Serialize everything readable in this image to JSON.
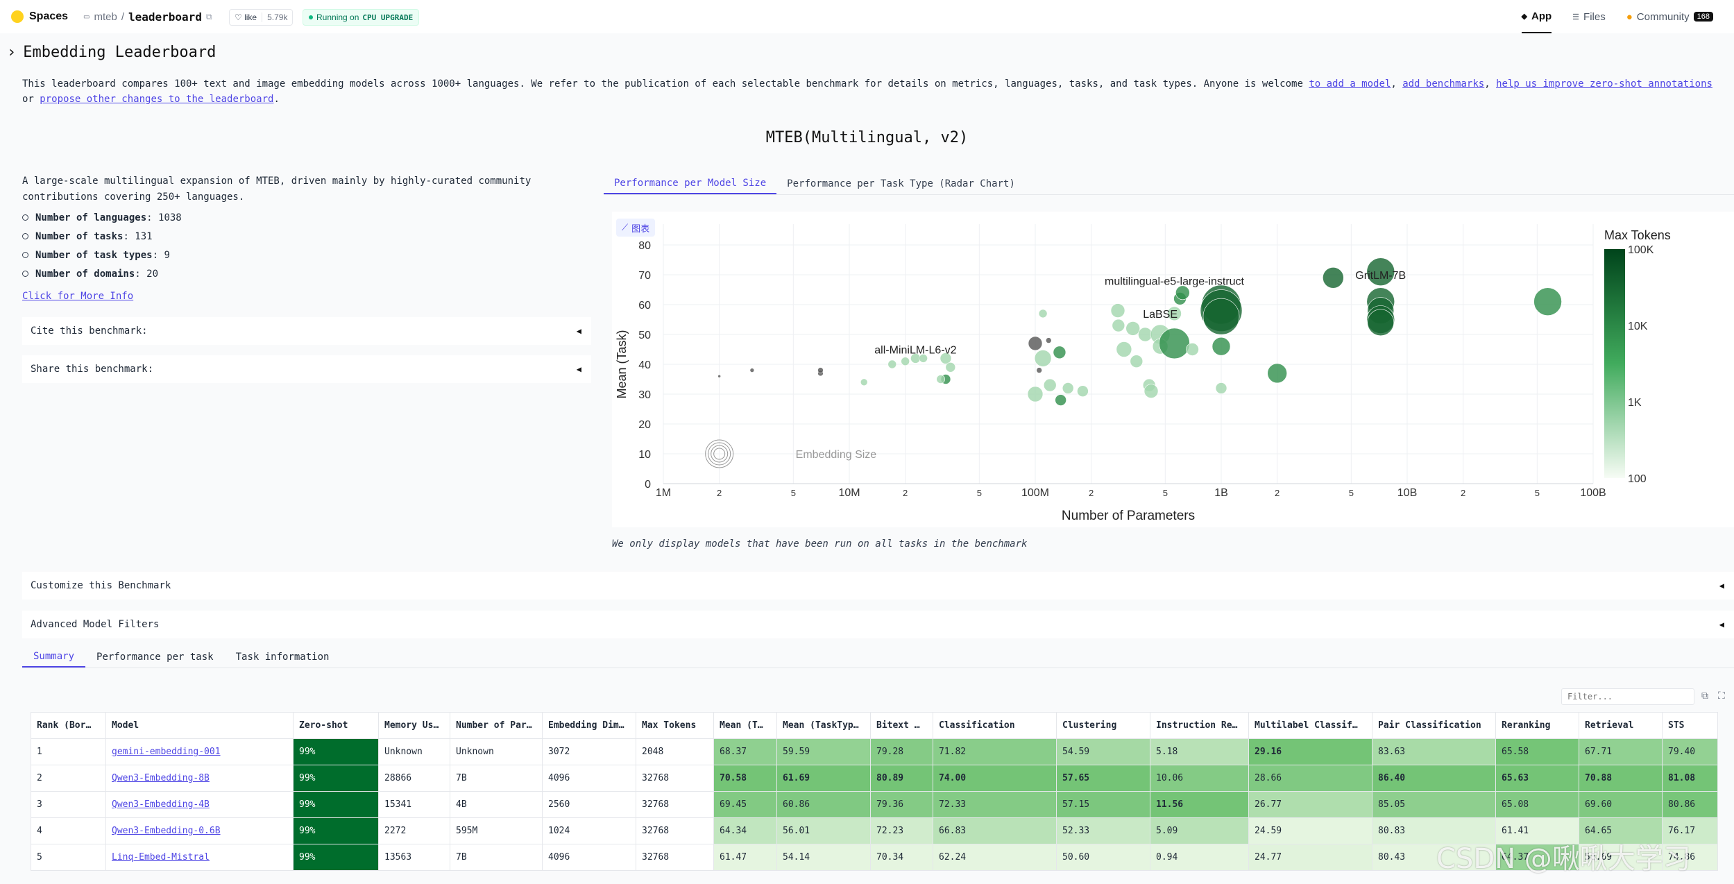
{
  "topbar": {
    "spaces_label": "Spaces",
    "org": "mteb",
    "repo": "leaderboard",
    "like_label": "like",
    "like_count": "5.79k",
    "status": "Running on",
    "hardware": "CPU UPGRADE",
    "nav": [
      {
        "label": "App"
      },
      {
        "label": "Files"
      },
      {
        "label": "Community",
        "badge": "168"
      }
    ]
  },
  "page": {
    "title": "Embedding Leaderboard",
    "intro_text": "This leaderboard compares 100+ text and image embedding models across 1000+ languages. We refer to the publication of each selectable benchmark for details on metrics, languages, tasks, and task types. Anyone is welcome ",
    "links": [
      "to add a model",
      "add benchmarks",
      "help us improve zero-shot annotations",
      "propose other changes to the leaderboard"
    ],
    "sep1": ", ",
    "sep2": ", ",
    "sep3": " or ",
    "end": "."
  },
  "benchmark": {
    "name": "MTEB(Multilingual, v2)",
    "description": "A large-scale multilingual expansion of MTEB, driven mainly by highly-curated community contributions covering 250+ languages.",
    "stats": [
      {
        "label": "Number of languages",
        "value": "1038"
      },
      {
        "label": "Number of tasks",
        "value": "131"
      },
      {
        "label": "Number of task types",
        "value": "9"
      },
      {
        "label": "Number of domains",
        "value": "20"
      }
    ],
    "more_info": "Click for More Info",
    "cite": "Cite this benchmark:",
    "share": "Share this benchmark:",
    "customize": "Customize this Benchmark",
    "filters": "Advanced Model Filters"
  },
  "chart_tabs": [
    "Performance per Model Size",
    "Performance per Task Type (Radar Chart)"
  ],
  "chart_badge": "图表",
  "chart_note": "We only display models that have been run on all tasks in the benchmark",
  "chart_data": {
    "type": "scatter",
    "xlabel": "Number of Parameters",
    "ylabel": "Mean (Task)",
    "x_scale": "log",
    "xlim": [
      1000000,
      100000000000
    ],
    "ylim": [
      0,
      80
    ],
    "x_ticks": [
      {
        "v": 1000000,
        "label": "1M"
      },
      {
        "v": 2000000,
        "label": "2"
      },
      {
        "v": 5000000,
        "label": "5"
      },
      {
        "v": 10000000,
        "label": "10M"
      },
      {
        "v": 20000000,
        "label": "2"
      },
      {
        "v": 50000000,
        "label": "5"
      },
      {
        "v": 100000000,
        "label": "100M"
      },
      {
        "v": 200000000,
        "label": "2"
      },
      {
        "v": 500000000,
        "label": "5"
      },
      {
        "v": 1000000000,
        "label": "1B"
      },
      {
        "v": 2000000000,
        "label": "2"
      },
      {
        "v": 5000000000,
        "label": "5"
      },
      {
        "v": 10000000000,
        "label": "10B"
      },
      {
        "v": 20000000000,
        "label": "2"
      },
      {
        "v": 50000000000,
        "label": "5"
      },
      {
        "v": 100000000000,
        "label": "100B"
      }
    ],
    "y_ticks": [
      0,
      10,
      20,
      30,
      40,
      50,
      60,
      70,
      80
    ],
    "colorbar": {
      "title": "Max Tokens",
      "ticks": [
        "100K",
        "10K",
        "1K",
        "100"
      ],
      "scale": "log",
      "range": [
        100,
        100000
      ],
      "colors": [
        "#00441b",
        "#f7fcf5"
      ]
    },
    "size_legend": "Embedding Size",
    "annotations": [
      {
        "text": "multilingual-e5-large-instruct",
        "x": 560000000,
        "y": 68
      },
      {
        "text": "GritLM-7B",
        "x": 7200000000,
        "y": 70
      },
      {
        "text": "LaBSE",
        "x": 470000000,
        "y": 57
      },
      {
        "text": "all-MiniLM-L6-v2",
        "x": 22700000,
        "y": 45
      }
    ],
    "points": [
      {
        "x": 2000000,
        "y": 36,
        "tok": 100,
        "s": 2,
        "gray": true
      },
      {
        "x": 3000000,
        "y": 38,
        "tok": 100,
        "s": 3,
        "gray": true
      },
      {
        "x": 7000000,
        "y": 37,
        "tok": 100,
        "s": 4,
        "gray": true
      },
      {
        "x": 7000000,
        "y": 38,
        "tok": 100,
        "s": 4,
        "gray": true
      },
      {
        "x": 12000000,
        "y": 34,
        "tok": 512,
        "s": 5
      },
      {
        "x": 17000000,
        "y": 40,
        "tok": 512,
        "s": 6
      },
      {
        "x": 20000000,
        "y": 41,
        "tok": 512,
        "s": 6
      },
      {
        "x": 22700000,
        "y": 42,
        "tok": 512,
        "s": 7
      },
      {
        "x": 25000000,
        "y": 42,
        "tok": 512,
        "s": 6
      },
      {
        "x": 33000000,
        "y": 42,
        "tok": 512,
        "s": 8
      },
      {
        "x": 33000000,
        "y": 35,
        "tok": 8192,
        "s": 7
      },
      {
        "x": 35000000,
        "y": 39,
        "tok": 512,
        "s": 7
      },
      {
        "x": 31000000,
        "y": 35,
        "tok": 512,
        "s": 6
      },
      {
        "x": 100000000,
        "y": 47,
        "tok": 100,
        "s": 10,
        "gray": true
      },
      {
        "x": 110000000,
        "y": 42,
        "tok": 512,
        "s": 12
      },
      {
        "x": 100000000,
        "y": 30,
        "tok": 512,
        "s": 11
      },
      {
        "x": 110000000,
        "y": 57,
        "tok": 512,
        "s": 6
      },
      {
        "x": 118000000,
        "y": 48,
        "tok": 100,
        "s": 4,
        "gray": true
      },
      {
        "x": 120000000,
        "y": 33,
        "tok": 512,
        "s": 9
      },
      {
        "x": 135000000,
        "y": 44,
        "tok": 8192,
        "s": 9
      },
      {
        "x": 137000000,
        "y": 28,
        "tok": 8192,
        "s": 8
      },
      {
        "x": 150000000,
        "y": 32,
        "tok": 512,
        "s": 8
      },
      {
        "x": 105000000,
        "y": 38,
        "tok": 100,
        "s": 4,
        "gray": true
      },
      {
        "x": 180000000,
        "y": 31,
        "tok": 512,
        "s": 8
      },
      {
        "x": 278000000,
        "y": 58,
        "tok": 512,
        "s": 10
      },
      {
        "x": 280000000,
        "y": 53,
        "tok": 512,
        "s": 9
      },
      {
        "x": 300000000,
        "y": 45,
        "tok": 512,
        "s": 11
      },
      {
        "x": 335000000,
        "y": 52,
        "tok": 512,
        "s": 10
      },
      {
        "x": 350000000,
        "y": 41,
        "tok": 512,
        "s": 9
      },
      {
        "x": 390000000,
        "y": 50,
        "tok": 512,
        "s": 10
      },
      {
        "x": 410000000,
        "y": 33,
        "tok": 512,
        "s": 9
      },
      {
        "x": 420000000,
        "y": 31,
        "tok": 512,
        "s": 10
      },
      {
        "x": 470000000,
        "y": 50,
        "tok": 512,
        "s": 14
      },
      {
        "x": 470000000,
        "y": 46,
        "tok": 512,
        "s": 11
      },
      {
        "x": 560000000,
        "y": 57,
        "tok": 512,
        "s": 10
      },
      {
        "x": 560000000,
        "y": 47,
        "tok": 8192,
        "s": 22
      },
      {
        "x": 600000000,
        "y": 62,
        "tok": 8192,
        "s": 9
      },
      {
        "x": 620000000,
        "y": 64,
        "tok": 8192,
        "s": 10
      },
      {
        "x": 700000000,
        "y": 45,
        "tok": 512,
        "s": 9
      },
      {
        "x": 1000000000,
        "y": 60,
        "tok": 32768,
        "s": 28
      },
      {
        "x": 1000000000,
        "y": 58,
        "tok": 32768,
        "s": 30
      },
      {
        "x": 1000000000,
        "y": 56,
        "tok": 32768,
        "s": 26
      },
      {
        "x": 1000000000,
        "y": 46,
        "tok": 8192,
        "s": 13
      },
      {
        "x": 1000000000,
        "y": 32,
        "tok": 512,
        "s": 8
      },
      {
        "x": 2000000000,
        "y": 37,
        "tok": 8192,
        "s": 14
      },
      {
        "x": 4000000000,
        "y": 69,
        "tok": 32768,
        "s": 15
      },
      {
        "x": 7200000000,
        "y": 71,
        "tok": 32768,
        "s": 20
      },
      {
        "x": 7200000000,
        "y": 61,
        "tok": 32768,
        "s": 20
      },
      {
        "x": 7200000000,
        "y": 58,
        "tok": 32768,
        "s": 19
      },
      {
        "x": 7200000000,
        "y": 55,
        "tok": 32768,
        "s": 20
      },
      {
        "x": 7200000000,
        "y": 54,
        "tok": 32768,
        "s": 19
      },
      {
        "x": 57000000000,
        "y": 61,
        "tok": 8192,
        "s": 20
      }
    ]
  },
  "result_tabs": [
    "Summary",
    "Performance per task",
    "Task information"
  ],
  "table": {
    "filter_placeholder": "Filter...",
    "headers": [
      "Rank (Bor…",
      "Model",
      "Zero-shot",
      "Memory Us…",
      "Number of Par…",
      "Embedding Dim…",
      "Max Tokens",
      "Mean (T…",
      "Mean (TaskTyp…",
      "Bitext …",
      "Classification",
      "Clustering",
      "Instruction Re…",
      "Multilabel Classif…",
      "Pair Classification",
      "Reranking",
      "Retrieval",
      "STS"
    ],
    "rows": [
      [
        "1",
        "gemini-embedding-001",
        "99%",
        "Unknown",
        "Unknown",
        "3072",
        "2048",
        "68.37",
        "59.59",
        "79.28",
        "71.82",
        "54.59",
        "5.18",
        "29.16",
        "83.63",
        "65.58",
        "67.71",
        "79.40"
      ],
      [
        "2",
        "Qwen3-Embedding-8B",
        "99%",
        "28866",
        "7B",
        "4096",
        "32768",
        "70.58",
        "61.69",
        "80.89",
        "74.00",
        "57.65",
        "10.06",
        "28.66",
        "86.40",
        "65.63",
        "70.88",
        "81.08"
      ],
      [
        "3",
        "Qwen3-Embedding-4B",
        "99%",
        "15341",
        "4B",
        "2560",
        "32768",
        "69.45",
        "60.86",
        "79.36",
        "72.33",
        "57.15",
        "11.56",
        "26.77",
        "85.05",
        "65.08",
        "69.60",
        "80.86"
      ],
      [
        "4",
        "Qwen3-Embedding-0.6B",
        "99%",
        "2272",
        "595M",
        "1024",
        "32768",
        "64.34",
        "56.01",
        "72.23",
        "66.83",
        "52.33",
        "5.09",
        "24.59",
        "80.83",
        "61.41",
        "64.65",
        "76.17"
      ],
      [
        "5",
        "Linq-Embed-Mistral",
        "99%",
        "13563",
        "7B",
        "4096",
        "32768",
        "61.47",
        "54.14",
        "70.34",
        "62.24",
        "50.60",
        "0.94",
        "24.77",
        "80.43",
        "64.37",
        "58.69",
        "74.86"
      ]
    ],
    "bold_cells": [
      [
        0,
        13
      ],
      [
        1,
        7
      ],
      [
        1,
        8
      ],
      [
        1,
        9
      ],
      [
        1,
        10
      ],
      [
        1,
        11
      ],
      [
        1,
        14
      ],
      [
        1,
        15
      ],
      [
        1,
        16
      ],
      [
        1,
        17
      ],
      [
        2,
        12
      ]
    ],
    "zero_shot_color": "#006d2c"
  },
  "watermark": "CSDN @啾啾大学习"
}
